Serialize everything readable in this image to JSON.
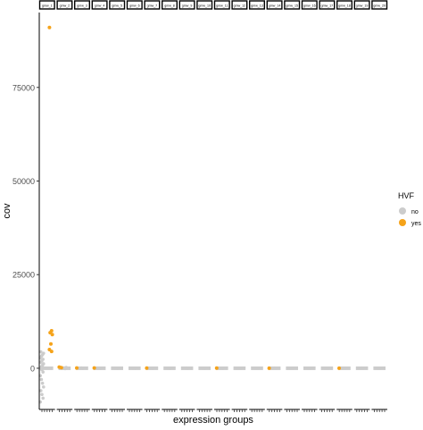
{
  "chart_data": {
    "type": "scatter",
    "title": "",
    "xlabel": "expression groups",
    "ylabel": "cov",
    "ylim": [
      -11000,
      95000
    ],
    "yticks": [
      0,
      25000,
      50000,
      75000
    ],
    "ytick_labels": [
      "0",
      "25000",
      "50000",
      "75000"
    ],
    "grid": false,
    "legend": {
      "title": "HVF",
      "placement": "right",
      "entries": [
        {
          "label": "no",
          "color": "#cccccc"
        },
        {
          "label": "yes",
          "color": "#f5a31a"
        }
      ]
    },
    "facets": [
      {
        "label": "gmw_1",
        "no": [
          0,
          400,
          800,
          1200,
          1600,
          2000,
          2400,
          2800,
          3200,
          3600,
          4000,
          4400,
          -400,
          -1000,
          -2000,
          -3000,
          -4000,
          -5000,
          -6000,
          -7000,
          -8000,
          -9000
        ],
        "yes": [
          91000,
          10000,
          9500,
          9000,
          6500,
          5000,
          4500
        ]
      },
      {
        "label": "gmw_2",
        "no": [
          0,
          100,
          -100,
          200
        ],
        "yes": [
          300,
          150
        ]
      },
      {
        "label": "gmw_3",
        "no": [
          0,
          50,
          -50
        ],
        "yes": [
          80
        ]
      },
      {
        "label": "gmw_4",
        "no": [
          0,
          40,
          -40
        ],
        "yes": [
          60
        ]
      },
      {
        "label": "gmw_5",
        "no": [
          0,
          30,
          -30
        ],
        "yes": []
      },
      {
        "label": "gmw_6",
        "no": [
          0,
          30,
          -30
        ],
        "yes": []
      },
      {
        "label": "gmw_7",
        "no": [
          0,
          30,
          -30
        ],
        "yes": [
          40
        ]
      },
      {
        "label": "gmw_8",
        "no": [
          0,
          25,
          -25
        ],
        "yes": []
      },
      {
        "label": "gmw_9",
        "no": [
          0,
          25,
          -25
        ],
        "yes": []
      },
      {
        "label": "gmw_10",
        "no": [
          0,
          25,
          -25
        ],
        "yes": []
      },
      {
        "label": "gmw_11",
        "no": [
          0,
          25,
          -25
        ],
        "yes": [
          30
        ]
      },
      {
        "label": "gmw_12",
        "no": [
          0,
          20,
          -20
        ],
        "yes": []
      },
      {
        "label": "gmw_13",
        "no": [
          0,
          20,
          -20
        ],
        "yes": []
      },
      {
        "label": "gmw_14",
        "no": [
          0,
          20,
          -20
        ],
        "yes": [
          25
        ]
      },
      {
        "label": "gmw_15",
        "no": [
          0,
          20,
          -20
        ],
        "yes": []
      },
      {
        "label": "gmw_16",
        "no": [
          0,
          20,
          -20
        ],
        "yes": []
      },
      {
        "label": "gmw_17",
        "no": [
          0,
          20,
          -20
        ],
        "yes": []
      },
      {
        "label": "gmw_18",
        "no": [
          0,
          20,
          -20
        ],
        "yes": [
          25
        ]
      },
      {
        "label": "gmw_19",
        "no": [
          0,
          20,
          -20
        ],
        "yes": []
      },
      {
        "label": "gmw_20",
        "no": [
          0,
          20,
          -20
        ],
        "yes": []
      }
    ]
  }
}
